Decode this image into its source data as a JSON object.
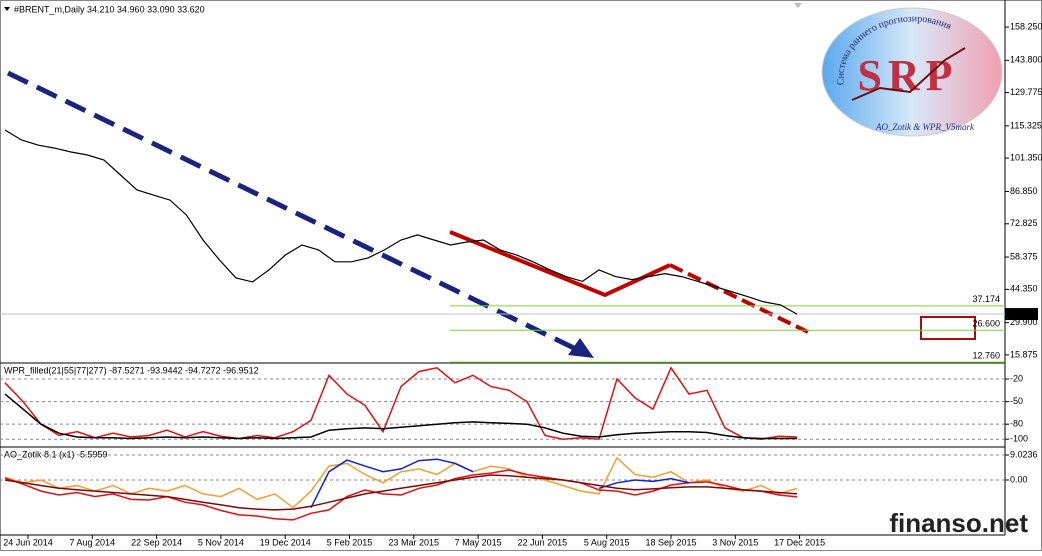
{
  "chart_data": [
    {
      "type": "line",
      "title": "#BRENT_m,Daily  34.210 34.960 33.090 33.620",
      "ylim": [
        12.8,
        168.7
      ],
      "yticks": [
        {
          "value": 158.25,
          "label": "158.250"
        },
        {
          "value": 143.8,
          "label": "143.800"
        },
        {
          "value": 129.775,
          "label": "129.775"
        },
        {
          "value": 115.325,
          "label": "115.325"
        },
        {
          "value": 101.35,
          "label": "101.350"
        },
        {
          "value": 86.85,
          "label": "86.850"
        },
        {
          "value": 72.825,
          "label": "72.825"
        },
        {
          "value": 58.375,
          "label": "58.375"
        },
        {
          "value": 44.35,
          "label": "44.350"
        },
        {
          "value": 29.9,
          "label": "29.900"
        },
        {
          "value": 15.875,
          "label": "15.875"
        }
      ],
      "series": [
        {
          "color": "#000000",
          "values": [
            113.55,
            109.2,
            107.0,
            105.7,
            104.0,
            102.7,
            100.5,
            94.0,
            87.5,
            85.3,
            83.1,
            76.6,
            65.8,
            57.1,
            49.3,
            47.6,
            52.8,
            59.3,
            63.6,
            61.5,
            56.3,
            56.3,
            58.0,
            61.5,
            65.8,
            68.0,
            65.8,
            63.6,
            64.9,
            65.8,
            61.5,
            59.3,
            56.3,
            52.9,
            49.9,
            47.8,
            52.8,
            49.9,
            48.6,
            49.9,
            51.2,
            49.9,
            47.8,
            45.6,
            43.4,
            41.2,
            38.9,
            37.6,
            33.62
          ]
        }
      ],
      "levels": [
        {
          "value": 37.174,
          "label": "37.174"
        },
        {
          "value": 26.6,
          "label": "26.600"
        },
        {
          "value": 12.76,
          "label": "12.760"
        }
      ],
      "last": {
        "value": 33.62,
        "label": "33.620"
      }
    },
    {
      "type": "line",
      "title": "WPR_filled(21|55|77|277) -87.5271 -93.9442 -94.7272 -96.9512",
      "ylim": [
        -109,
        0
      ],
      "yticks": [
        -20,
        -50,
        -80,
        -100
      ],
      "grid": true,
      "series": [
        {
          "color": "#e01010",
          "values": [
            -25,
            -50,
            -80,
            -95,
            -90,
            -98,
            -92,
            -97,
            -95,
            -88,
            -97,
            -90,
            -96,
            -99,
            -95,
            -98,
            -90,
            -75,
            -15,
            -40,
            -55,
            -90,
            -30,
            -10,
            -5,
            -25,
            -15,
            -30,
            -35,
            -50,
            -95,
            -100,
            -98,
            -100,
            -20,
            -45,
            -60,
            -5,
            -40,
            -35,
            -85,
            -98,
            -100,
            -96,
            -97
          ]
        },
        {
          "color": "#000000",
          "values": [
            -40,
            -60,
            -80,
            -92,
            -97,
            -98,
            -98,
            -99,
            -98,
            -97,
            -98,
            -97,
            -98,
            -99,
            -98,
            -99,
            -98,
            -97,
            -88,
            -86,
            -85,
            -86,
            -84,
            -82,
            -80,
            -78,
            -77,
            -78,
            -79,
            -80,
            -85,
            -92,
            -96,
            -97,
            -94,
            -92,
            -91,
            -90,
            -90,
            -91,
            -95,
            -98,
            -99,
            -99,
            -99
          ]
        }
      ]
    },
    {
      "type": "line",
      "title": "AO_Zotik 8.1 (x1) -5.5959",
      "ylim": [
        -19.85,
        11.55
      ],
      "yticks": [
        9.0236,
        {
          "value": 0,
          "label": "0.00"
        }
      ],
      "grid": true,
      "series": [
        {
          "color": "#f0a030",
          "values": [
            1,
            -1,
            0,
            -3,
            -2,
            -4,
            -2,
            -5,
            -3,
            -4,
            -2,
            -5,
            -6,
            -3,
            -7,
            -5,
            -10,
            -4,
            5,
            6,
            2,
            -1,
            3,
            4,
            2,
            6,
            3,
            5,
            4,
            1,
            0,
            -2,
            -4,
            -5,
            8,
            2,
            1,
            3,
            -1,
            0,
            -3,
            -4,
            -2,
            -5,
            -3
          ]
        },
        {
          "color": "#e01010",
          "values": [
            0.7,
            -1.5,
            -4,
            -5.4,
            -4.5,
            -6,
            -5,
            -7,
            -7.2,
            -6,
            -8,
            -9,
            -11,
            -12.6,
            -13,
            -14,
            -14.4,
            -12,
            -10.8,
            -6,
            -3.6,
            -5,
            -5.4,
            -3,
            -1.8,
            0.5,
            1.8,
            2.5,
            3.6,
            2,
            1,
            0,
            -1,
            -3.6,
            -4,
            -5.4,
            -4,
            -1.8,
            -1,
            -0.7,
            -2,
            -3.6,
            -4,
            -5.4,
            -6.1
          ]
        },
        {
          "color": "#1020d0",
          "values": [
            null,
            null,
            null,
            null,
            null,
            null,
            null,
            null,
            null,
            null,
            null,
            null,
            null,
            null,
            null,
            null,
            null,
            -10,
            3,
            7.2,
            5,
            3,
            4,
            7,
            7.5,
            6,
            3,
            null,
            null,
            null,
            null,
            null,
            null,
            -3,
            -1,
            0,
            -0.5,
            0.5,
            -1,
            null,
            null,
            null,
            null,
            null,
            null
          ]
        },
        {
          "color": "#7a0a0a",
          "values": [
            0,
            -1,
            -2,
            -3,
            -3.5,
            -4,
            -4.5,
            -5,
            -5.5,
            -6,
            -7,
            -8,
            -9,
            -10,
            -10.5,
            -10.8,
            -10.5,
            -9.5,
            -8,
            -6.5,
            -5,
            -4,
            -3,
            -2,
            -1,
            0,
            1,
            1.8,
            1.5,
            1,
            0.5,
            0,
            -1,
            -2,
            -3,
            -3.5,
            -3.2,
            -2.8,
            -2.5,
            -2.5,
            -3,
            -3.5,
            -4,
            -4.5,
            -5
          ]
        }
      ]
    }
  ],
  "time_axis": [
    "24 Jun 2014",
    "7 Aug 2014",
    "22 Sep 2014",
    "5 Nov 2014",
    "19 Dec 2014",
    "5 Feb 2015",
    "23 Mar 2015",
    "7 May 2015",
    "22 Jun 2015",
    "5 Aug 2015",
    "18 Sep 2015",
    "3 Nov 2015",
    "17 Dec 2015"
  ],
  "logo": {
    "mark": "SRP",
    "arc": "Система раннего прогнозирования",
    "footer": "AO_Zotik & WPR_V5mark"
  },
  "watermark": "finanso.net"
}
